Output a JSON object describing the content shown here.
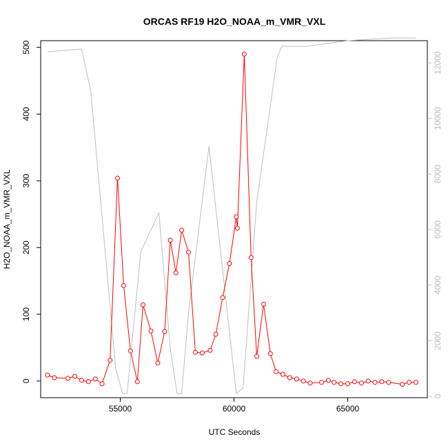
{
  "chart_data": {
    "type": "line",
    "title": "ORCAS RF19 H2O_NOAA_m_VMR_VXL",
    "xlabel": "UTC Seconds",
    "ylabel": "H2O_NOAA_m_VMR_VXL",
    "xlim": [
      51500,
      68500
    ],
    "ylim": [
      -25,
      510
    ],
    "y2lim": [
      -50,
      12800
    ],
    "x_ticks": [
      55000,
      60000,
      65000
    ],
    "x_tick_labels": [
      "55000",
      "60000",
      "65000"
    ],
    "y_ticks": [
      0,
      100,
      200,
      300,
      400,
      500
    ],
    "y_tick_labels": [
      "0",
      "100",
      "200",
      "300",
      "400",
      "500"
    ],
    "y2_ticks": [
      0,
      2000,
      4000,
      6000,
      8000,
      10000,
      12000
    ],
    "y2_tick_labels": [
      "0",
      "2000",
      "4000",
      "6000",
      "8000",
      "10000",
      "12000"
    ],
    "grid": false,
    "series": [
      {
        "axis": "left",
        "color": "#ff0000",
        "marker": "circle",
        "x": [
          51800,
          52100,
          52700,
          53000,
          53300,
          53600,
          53900,
          54200,
          54550,
          54880,
          55150,
          55450,
          55750,
          56000,
          56350,
          56650,
          56950,
          57200,
          57450,
          57700,
          58000,
          58300,
          58600,
          58950,
          59200,
          59500,
          59800,
          60100,
          60150,
          60450,
          60750,
          61000,
          61300,
          61600,
          61850,
          62150,
          62450,
          62750,
          63050,
          63350,
          63850,
          64150,
          64400,
          64700,
          65000,
          65300,
          65600,
          65900,
          66200,
          66500,
          66800,
          67400,
          67700,
          68000
        ],
        "y": [
          9,
          5,
          4,
          7,
          1,
          -1,
          3,
          -4,
          31,
          304,
          143,
          45,
          -1,
          114,
          75,
          27,
          74,
          211,
          162,
          226,
          193,
          43,
          42,
          46,
          70,
          125,
          176,
          246,
          229,
          490,
          185,
          37,
          115,
          41,
          14,
          10,
          5,
          3,
          0,
          -3,
          -2,
          1,
          -2,
          -4,
          -4,
          -1,
          -3,
          0,
          -2,
          -1,
          -2,
          -5,
          -2,
          -2
        ]
      },
      {
        "axis": "right",
        "color": "#bebebe",
        "marker": "none",
        "x": [
          51800,
          53300,
          53700,
          54800,
          55100,
          55300,
          55900,
          56700,
          57200,
          57500,
          57700,
          58000,
          58900,
          60100,
          60400,
          61000,
          61900,
          62100,
          63200,
          65000,
          67000,
          68000
        ],
        "y": [
          12400,
          12500,
          11000,
          1000,
          100,
          100,
          5200,
          6600,
          1700,
          100,
          100,
          3000,
          9000,
          100,
          300,
          7000,
          12200,
          12600,
          12600,
          12800,
          12900,
          12900
        ]
      }
    ]
  }
}
